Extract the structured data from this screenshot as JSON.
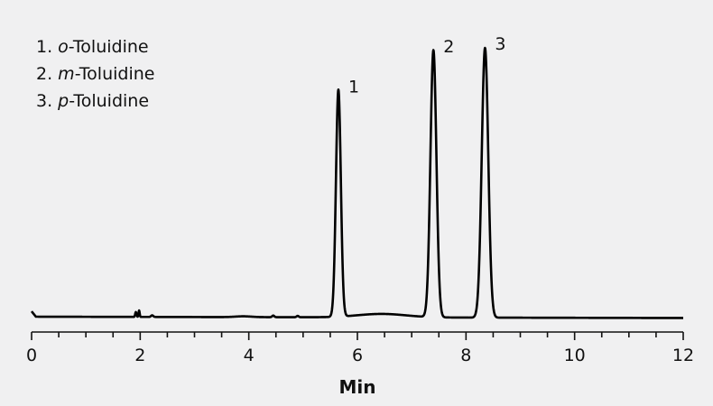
{
  "chart_data": {
    "type": "line",
    "title": "",
    "xlabel": "Min",
    "ylabel": "",
    "xlim": [
      0,
      12
    ],
    "x_major_ticks": [
      0,
      2,
      4,
      6,
      8,
      10,
      12
    ],
    "x_minor_step": 0.5,
    "grid": false,
    "y_axis_shown": false,
    "legend_placement": "top-left",
    "legend": [
      {
        "number": "1.",
        "prefix": "o",
        "name": "-Toluidine"
      },
      {
        "number": "2.",
        "prefix": "m",
        "name": "-Toluidine"
      },
      {
        "number": "3.",
        "prefix": "p",
        "name": "-Toluidine"
      }
    ],
    "peaks": [
      {
        "label": "1",
        "time": 5.65,
        "height": 0.85,
        "width": 0.045
      },
      {
        "label": "2",
        "time": 7.4,
        "height": 1.0,
        "width": 0.055
      },
      {
        "label": "3",
        "time": 8.35,
        "height": 1.01,
        "width": 0.06
      }
    ],
    "minor_features": [
      {
        "time": 1.92,
        "height": 0.018,
        "width": 0.012
      },
      {
        "time": 1.98,
        "height": 0.024,
        "width": 0.01
      },
      {
        "time": 2.22,
        "height": 0.006,
        "width": 0.02
      },
      {
        "time": 4.45,
        "height": 0.006,
        "width": 0.02
      },
      {
        "time": 4.9,
        "height": 0.005,
        "width": 0.02
      },
      {
        "time": 6.45,
        "height": 0.013,
        "width": 0.45
      },
      {
        "time": 3.9,
        "height": 0.003,
        "width": 0.15
      }
    ],
    "baseline": {
      "start": 0.0,
      "end": -0.005,
      "initial_spike": 0.02
    },
    "line_color": "#000000",
    "background_color": "#f0f0f1"
  }
}
